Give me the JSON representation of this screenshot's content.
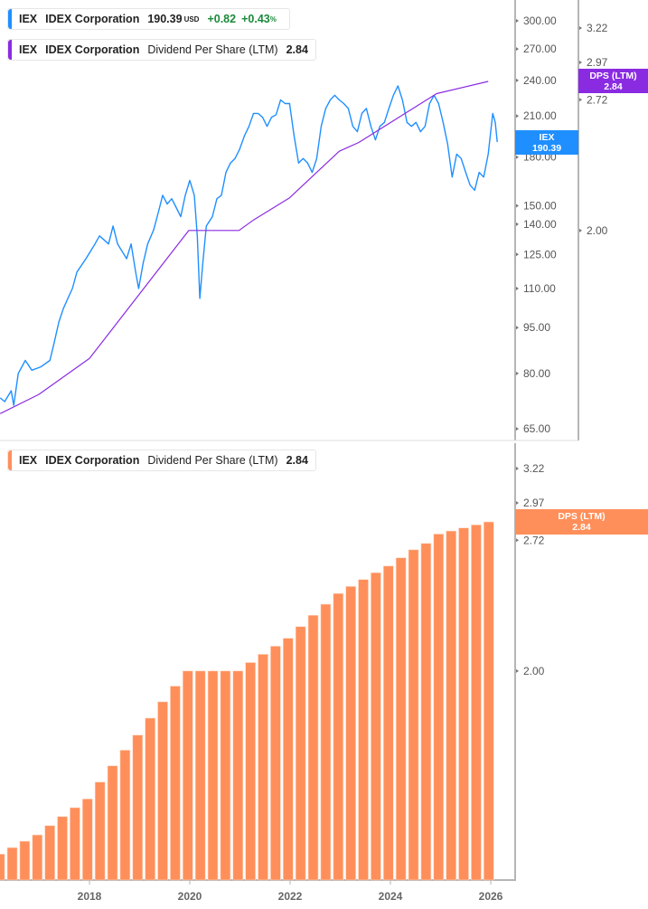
{
  "colors": {
    "price": "#1f8fff",
    "dps_line": "#8a2be2",
    "dps_bars": "#ff8f5a",
    "axis": "#b5b5b5",
    "tick_text": "#555555"
  },
  "legend_price": {
    "ticker": "IEX",
    "name": "IDEX Corporation",
    "price": "190.39",
    "currency": "USD",
    "change": "+0.82",
    "change_pct": "+0.43",
    "pct_sign": "%"
  },
  "legend_dps_top": {
    "ticker": "IEX",
    "name": "IDEX Corporation",
    "metric": "Dividend Per Share (LTM)",
    "value": "2.84"
  },
  "legend_dps_bottom": {
    "ticker": "IEX",
    "name": "IDEX Corporation",
    "metric": "Dividend Per Share (LTM)",
    "value": "2.84"
  },
  "tags": {
    "price": {
      "line1": "IEX",
      "line2": "190.39"
    },
    "dps_top": {
      "line1": "DPS (LTM)",
      "line2": "2.84"
    },
    "dps_bottom": {
      "line1": "DPS (LTM)",
      "line2": "2.84"
    }
  },
  "chart_data": [
    {
      "type": "line",
      "panel": "top",
      "scale": "log",
      "price_axis_ticks": [
        300,
        270,
        240,
        210,
        180,
        150,
        140,
        125,
        110,
        95,
        80,
        65
      ],
      "dps_axis_ticks": [
        3.22,
        2.97,
        2.72,
        2.0
      ],
      "series": [
        {
          "name": "IEX",
          "axis": "price",
          "points": [
            [
              2016.22,
              73
            ],
            [
              2016.31,
              72
            ],
            [
              2016.44,
              75
            ],
            [
              2016.49,
              71
            ],
            [
              2016.58,
              80
            ],
            [
              2016.72,
              84
            ],
            [
              2016.85,
              81
            ],
            [
              2017.03,
              82
            ],
            [
              2017.21,
              84
            ],
            [
              2017.3,
              90
            ],
            [
              2017.39,
              97
            ],
            [
              2017.48,
              102
            ],
            [
              2017.57,
              106
            ],
            [
              2017.66,
              110
            ],
            [
              2017.75,
              117
            ],
            [
              2017.93,
              123
            ],
            [
              2018.11,
              130
            ],
            [
              2018.2,
              134
            ],
            [
              2018.29,
              132
            ],
            [
              2018.38,
              130
            ],
            [
              2018.47,
              139
            ],
            [
              2018.56,
              130
            ],
            [
              2018.74,
              123
            ],
            [
              2018.83,
              130
            ],
            [
              2018.92,
              117
            ],
            [
              2018.98,
              110
            ],
            [
              2019.07,
              121
            ],
            [
              2019.16,
              130
            ],
            [
              2019.28,
              137
            ],
            [
              2019.37,
              146
            ],
            [
              2019.46,
              156
            ],
            [
              2019.55,
              151
            ],
            [
              2019.64,
              154
            ],
            [
              2019.73,
              149
            ],
            [
              2019.82,
              144
            ],
            [
              2019.91,
              156
            ],
            [
              2020.0,
              165
            ],
            [
              2020.09,
              156
            ],
            [
              2020.15,
              134
            ],
            [
              2020.2,
              106
            ],
            [
              2020.26,
              121
            ],
            [
              2020.33,
              139
            ],
            [
              2020.45,
              144
            ],
            [
              2020.54,
              154
            ],
            [
              2020.63,
              156
            ],
            [
              2020.72,
              170
            ],
            [
              2020.81,
              176
            ],
            [
              2020.9,
              179
            ],
            [
              2020.99,
              185
            ],
            [
              2021.09,
              195
            ],
            [
              2021.18,
              202
            ],
            [
              2021.27,
              212
            ],
            [
              2021.36,
              212
            ],
            [
              2021.45,
              209
            ],
            [
              2021.54,
              202
            ],
            [
              2021.63,
              209
            ],
            [
              2021.72,
              211
            ],
            [
              2021.81,
              223
            ],
            [
              2021.9,
              220
            ],
            [
              2021.99,
              220
            ],
            [
              2022.08,
              195
            ],
            [
              2022.17,
              176
            ],
            [
              2022.26,
              179
            ],
            [
              2022.35,
              176
            ],
            [
              2022.44,
              170
            ],
            [
              2022.53,
              179
            ],
            [
              2022.62,
              202
            ],
            [
              2022.71,
              216
            ],
            [
              2022.8,
              223
            ],
            [
              2022.89,
              227
            ],
            [
              2022.98,
              223
            ],
            [
              2023.07,
              220
            ],
            [
              2023.16,
              216
            ],
            [
              2023.25,
              202
            ],
            [
              2023.34,
              198
            ],
            [
              2023.43,
              212
            ],
            [
              2023.52,
              216
            ],
            [
              2023.61,
              202
            ],
            [
              2023.7,
              192
            ],
            [
              2023.79,
              202
            ],
            [
              2023.88,
              205
            ],
            [
              2023.97,
              216
            ],
            [
              2024.06,
              227
            ],
            [
              2024.15,
              235
            ],
            [
              2024.24,
              223
            ],
            [
              2024.33,
              205
            ],
            [
              2024.42,
              202
            ],
            [
              2024.51,
              205
            ],
            [
              2024.6,
              198
            ],
            [
              2024.69,
              202
            ],
            [
              2024.78,
              220
            ],
            [
              2024.87,
              227
            ],
            [
              2024.96,
              220
            ],
            [
              2025.05,
              205
            ],
            [
              2025.14,
              189
            ],
            [
              2025.23,
              167
            ],
            [
              2025.32,
              182
            ],
            [
              2025.41,
              179
            ],
            [
              2025.5,
              170
            ],
            [
              2025.59,
              162
            ],
            [
              2025.68,
              159
            ],
            [
              2025.77,
              170
            ],
            [
              2025.86,
              167
            ],
            [
              2025.95,
              182
            ],
            [
              2026.04,
              212
            ],
            [
              2026.09,
              205
            ],
            [
              2026.13,
              190.39
            ]
          ]
        },
        {
          "name": "DPS (LTM)",
          "axis": "dps",
          "points": [
            [
              2016.22,
              1.3
            ],
            [
              2016.99,
              1.36
            ],
            [
              2018.0,
              1.48
            ],
            [
              2019.98,
              2.0
            ],
            [
              2020.98,
              2.0
            ],
            [
              2021.27,
              2.05
            ],
            [
              2021.99,
              2.16
            ],
            [
              2022.98,
              2.41
            ],
            [
              2023.37,
              2.46
            ],
            [
              2024.92,
              2.76
            ],
            [
              2025.95,
              2.84
            ]
          ]
        }
      ]
    },
    {
      "type": "bar",
      "panel": "bottom",
      "scale": "log",
      "y_axis_ticks": [
        3.22,
        2.97,
        2.72,
        2.0
      ],
      "x_ticks": [
        "2018",
        "2020",
        "2022",
        "2024",
        "2026"
      ],
      "categories": [
        "2016Q1",
        "2016Q2",
        "2016Q3",
        "2016Q4",
        "2017Q1",
        "2017Q2",
        "2017Q3",
        "2017Q4",
        "2018Q1",
        "2018Q2",
        "2018Q3",
        "2018Q4",
        "2019Q1",
        "2019Q2",
        "2019Q3",
        "2019Q4",
        "2020Q1",
        "2020Q2",
        "2020Q3",
        "2020Q4",
        "2021Q1",
        "2021Q2",
        "2021Q3",
        "2021Q4",
        "2022Q1",
        "2022Q2",
        "2022Q3",
        "2022Q4",
        "2023Q1",
        "2023Q2",
        "2023Q3",
        "2023Q4",
        "2024Q1",
        "2024Q2",
        "2024Q3",
        "2024Q4",
        "2025Q1",
        "2025Q2",
        "2025Q3",
        "2025Q4"
      ],
      "values": [
        1.3,
        1.32,
        1.34,
        1.36,
        1.39,
        1.42,
        1.45,
        1.48,
        1.54,
        1.6,
        1.66,
        1.72,
        1.79,
        1.86,
        1.93,
        2.0,
        2.0,
        2.0,
        2.0,
        2.0,
        2.04,
        2.08,
        2.12,
        2.16,
        2.22,
        2.28,
        2.34,
        2.4,
        2.44,
        2.48,
        2.52,
        2.56,
        2.61,
        2.66,
        2.7,
        2.76,
        2.78,
        2.8,
        2.82,
        2.84
      ]
    }
  ]
}
